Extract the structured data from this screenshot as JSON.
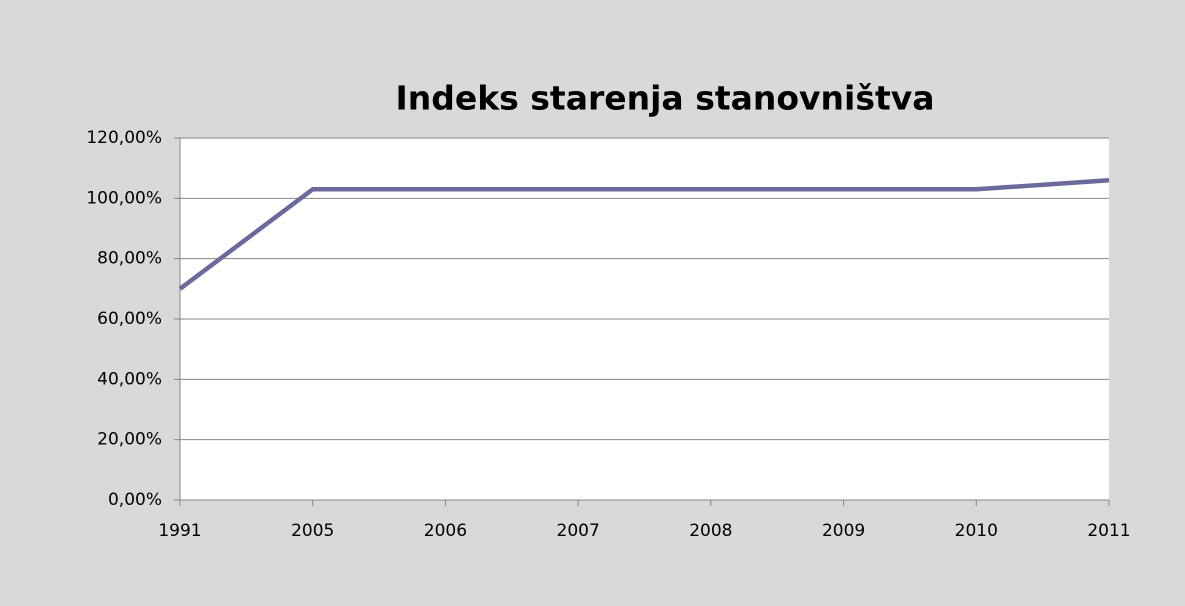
{
  "chart_data": {
    "type": "line",
    "title": "Indeks starenja stanovništva",
    "categories": [
      "1991",
      "2005",
      "2006",
      "2007",
      "2008",
      "2009",
      "2010",
      "2011"
    ],
    "values": [
      70,
      103,
      103,
      103,
      103,
      103,
      103,
      106
    ],
    "color": "#6a6a9c",
    "ylim": [
      0,
      120
    ],
    "yticks": [
      {
        "value": 0,
        "label": "0,00%"
      },
      {
        "value": 20,
        "label": "20,00%"
      },
      {
        "value": 40,
        "label": "40,00%"
      },
      {
        "value": 60,
        "label": "60,00%"
      },
      {
        "value": 80,
        "label": "80,00%"
      },
      {
        "value": 100,
        "label": "100,00%"
      },
      {
        "value": 120,
        "label": "120,00%"
      }
    ],
    "grid": true
  }
}
